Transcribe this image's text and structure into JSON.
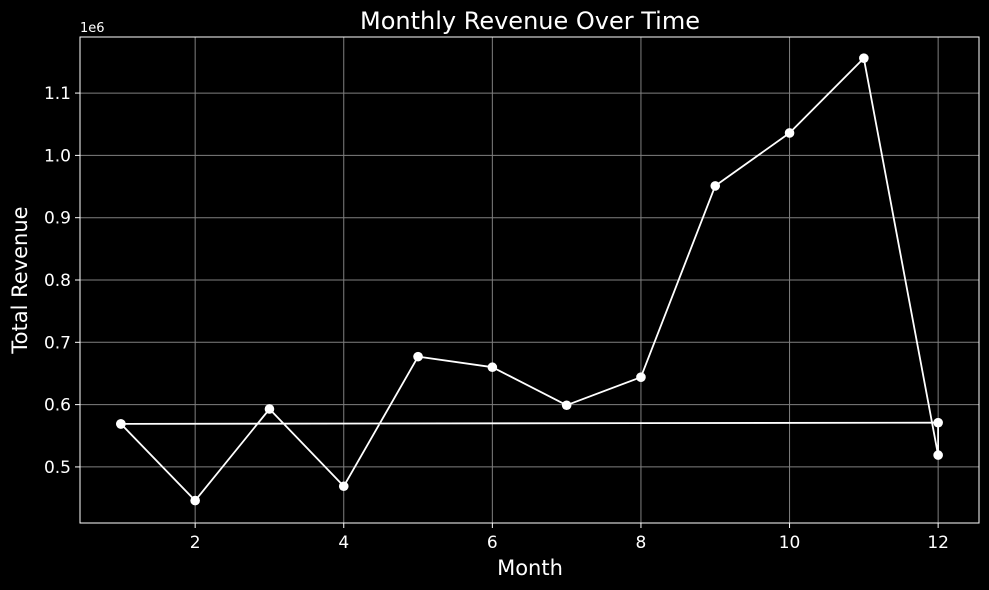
{
  "chart_data": {
    "type": "line",
    "title": "Monthly Revenue Over Time",
    "xlabel": "Month",
    "ylabel": "Total Revenue",
    "y_offset_label": "1e6",
    "y_scale_factor": 1000000,
    "xlim": [
      0.45,
      12.55
    ],
    "ylim": [
      410000,
      1190000
    ],
    "x_ticks": [
      2,
      4,
      6,
      8,
      10,
      12
    ],
    "y_ticks": [
      0.5,
      0.6,
      0.7,
      0.8,
      0.9,
      1.0,
      1.1
    ],
    "grid": true,
    "background_color": "#000000",
    "foreground_color": "#ffffff",
    "grid_color": "#808080",
    "series": [
      {
        "color": "#ffffff",
        "marker": "circle",
        "points": [
          {
            "x": 1,
            "y": 569000
          },
          {
            "x": 2,
            "y": 446000
          },
          {
            "x": 3,
            "y": 593000
          },
          {
            "x": 4,
            "y": 469000
          },
          {
            "x": 5,
            "y": 677000
          },
          {
            "x": 6,
            "y": 660000
          },
          {
            "x": 7,
            "y": 599000
          },
          {
            "x": 8,
            "y": 644000
          },
          {
            "x": 9,
            "y": 951000
          },
          {
            "x": 10,
            "y": 1036000
          },
          {
            "x": 11,
            "y": 1156000
          },
          {
            "x": 12,
            "y": 519000
          },
          {
            "x": 12,
            "y": 571000
          },
          {
            "x": 1,
            "y": 569000
          }
        ]
      }
    ]
  }
}
